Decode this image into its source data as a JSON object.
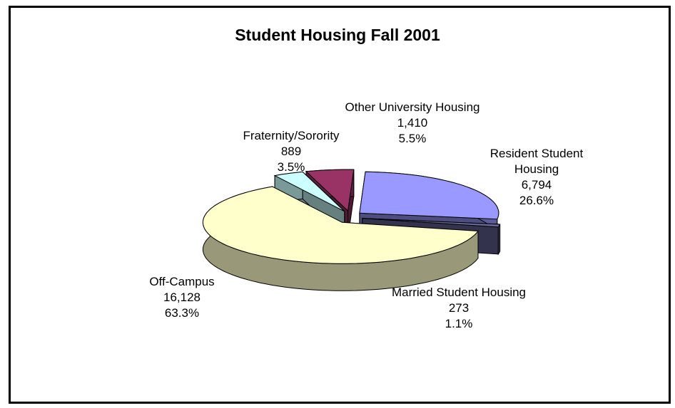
{
  "chart_data": {
    "type": "pie",
    "title": "Student Housing Fall 2001",
    "categories": [
      "Other University Housing",
      "Resident Student Housing",
      "Married Student Housing",
      "Off-Campus",
      "Fraternity/Sorority"
    ],
    "values": [
      1410,
      6794,
      273,
      16128,
      889
    ],
    "value_labels": [
      "1,410",
      "6,794",
      "273",
      "16,128",
      "889"
    ],
    "percentages": [
      5.5,
      26.6,
      1.1,
      63.3,
      3.5
    ],
    "percentage_labels": [
      "5.5%",
      "26.6%",
      "1.1%",
      "63.3%",
      "3.5%"
    ],
    "colors": [
      "#993366",
      "#9999ff",
      "#666699",
      "#ffffcc",
      "#ccffff"
    ]
  }
}
